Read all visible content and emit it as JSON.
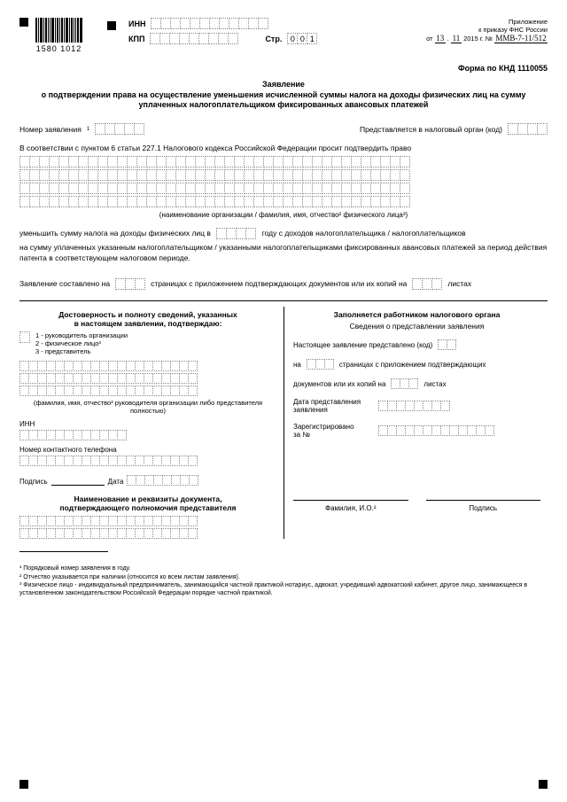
{
  "barcode_number": "1580 1012",
  "top": {
    "inn": "ИНН",
    "kpp": "КПП",
    "str_label": "Стр.",
    "str_value": [
      "0",
      "0",
      "1"
    ],
    "appendix1": "Приложение",
    "appendix2": "к приказу ФНС России",
    "date_from": "от",
    "date_d": "13",
    "date_m": "11",
    "date_y": "2015 г.",
    "order_no_label": "№",
    "order_no": "ММВ-7-11/512"
  },
  "form_no": "Форма по КНД 1110055",
  "title1": "Заявление",
  "title2": "о подтверждении права на осуществление уменьшения исчисленной суммы налога на доходы физических лиц на сумму уплаченных налогоплательщиком фиксированных авансовых платежей",
  "f": {
    "app_no": "Номер заявления",
    "submitted": "Представляется в налоговый орган (код)",
    "law": "В соответствии с пунктом 6 статьи 227.1 Налогового кодекса Российской Федерации просит подтвердить право",
    "org_caption": "(наименование организации / фамилия, имя, отчество² физического лица³)",
    "reduce": "уменьшить сумму налога на доходы физических лиц в",
    "year": "году с доходов налогоплательщика / налогоплательщиков",
    "reduce2": "на сумму уплаченных указанным налогоплательщиком / указанными налогоплательщиками фиксированных авансовых платежей за период действия патента в соответствующем налоговом периоде.",
    "composed": "Заявление составлено на",
    "pages_mid": "страницах с приложением подтверждающих документов или их копий на",
    "sheets": "листах"
  },
  "left": {
    "h1": "Достоверность и полноту сведений, указанных",
    "h2": "в настоящем заявлении, подтверждаю:",
    "o1": "1 - руководитель организации",
    "o2": "2 - физическое лицо³",
    "o3": "3 - представитель",
    "fio_cap": "(фамилия, имя, отчество² руководителя организации либо представителя полностью)",
    "inn": "ИНН",
    "phone": "Номер контактного телефона",
    "sign": "Подпись",
    "date": "Дата",
    "doc_h1": "Наименование и реквизиты документа,",
    "doc_h2": "подтверждающего полномочия представителя"
  },
  "right": {
    "h1": "Заполняется работником налогового органа",
    "h2": "Сведения о представлении заявления",
    "presented": "Настоящее заявление представлено (код)",
    "on": "на",
    "pages_txt": "страницах с приложением подтверждающих",
    "docs": "документов или их копий на",
    "sheets": "листах",
    "date_sub": "Дата представления заявления",
    "reg1": "Зарегистрировано",
    "reg2": "за №",
    "fio": "Фамилия, И.О.²",
    "sign": "Подпись"
  },
  "foot": {
    "n1": "¹ Порядковый номер заявления в году.",
    "n2": "² Отчество указывается при наличии (относится ко всем листам заявления).",
    "n3": "³ Физическое лицо - индивидуальный предприниматель, занимающийся частной практикой нотариус, адвокат, учредивший адвокатский кабинет, другое лицо, занимающееся в установленном законодательством Российской Федерации порядке частной практикой."
  },
  "cells": {
    "inn": 12,
    "kpp": 9,
    "app_no": 5,
    "org_code": 4,
    "full_row": 40,
    "year": 4,
    "pages": 3,
    "sheets": 3,
    "one": 1,
    "fio_row": 20,
    "inn2": 12,
    "phone": 20,
    "date": 8,
    "doc_row": 20,
    "r_code": 2,
    "r_pages": 3,
    "r_sheets": 3,
    "r_date": 8,
    "r_reg": 13
  }
}
